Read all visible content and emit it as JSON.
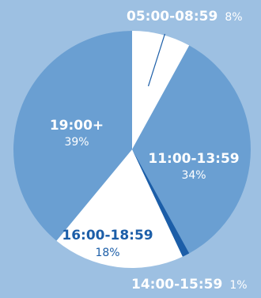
{
  "chart_data": {
    "type": "pie",
    "slices": [
      {
        "label": "05:00-08:59",
        "value": 8,
        "display": "8%",
        "color": "#ffffff"
      },
      {
        "label": "11:00-13:59",
        "value": 34,
        "display": "34%",
        "color": "#6a9fd2"
      },
      {
        "label": "14:00-15:59",
        "value": 1,
        "display": "1%",
        "color": "#1c5ea8"
      },
      {
        "label": "16:00-18:59",
        "value": 18,
        "display": "18%",
        "color": "#ffffff"
      },
      {
        "label": "19:00+",
        "value": 39,
        "display": "39%",
        "color": "#6a9fd2"
      }
    ],
    "background": "#9dc0e2",
    "text_color_light": "#ffffff",
    "text_color_dark": "#1c5ea8",
    "legend": "none"
  }
}
